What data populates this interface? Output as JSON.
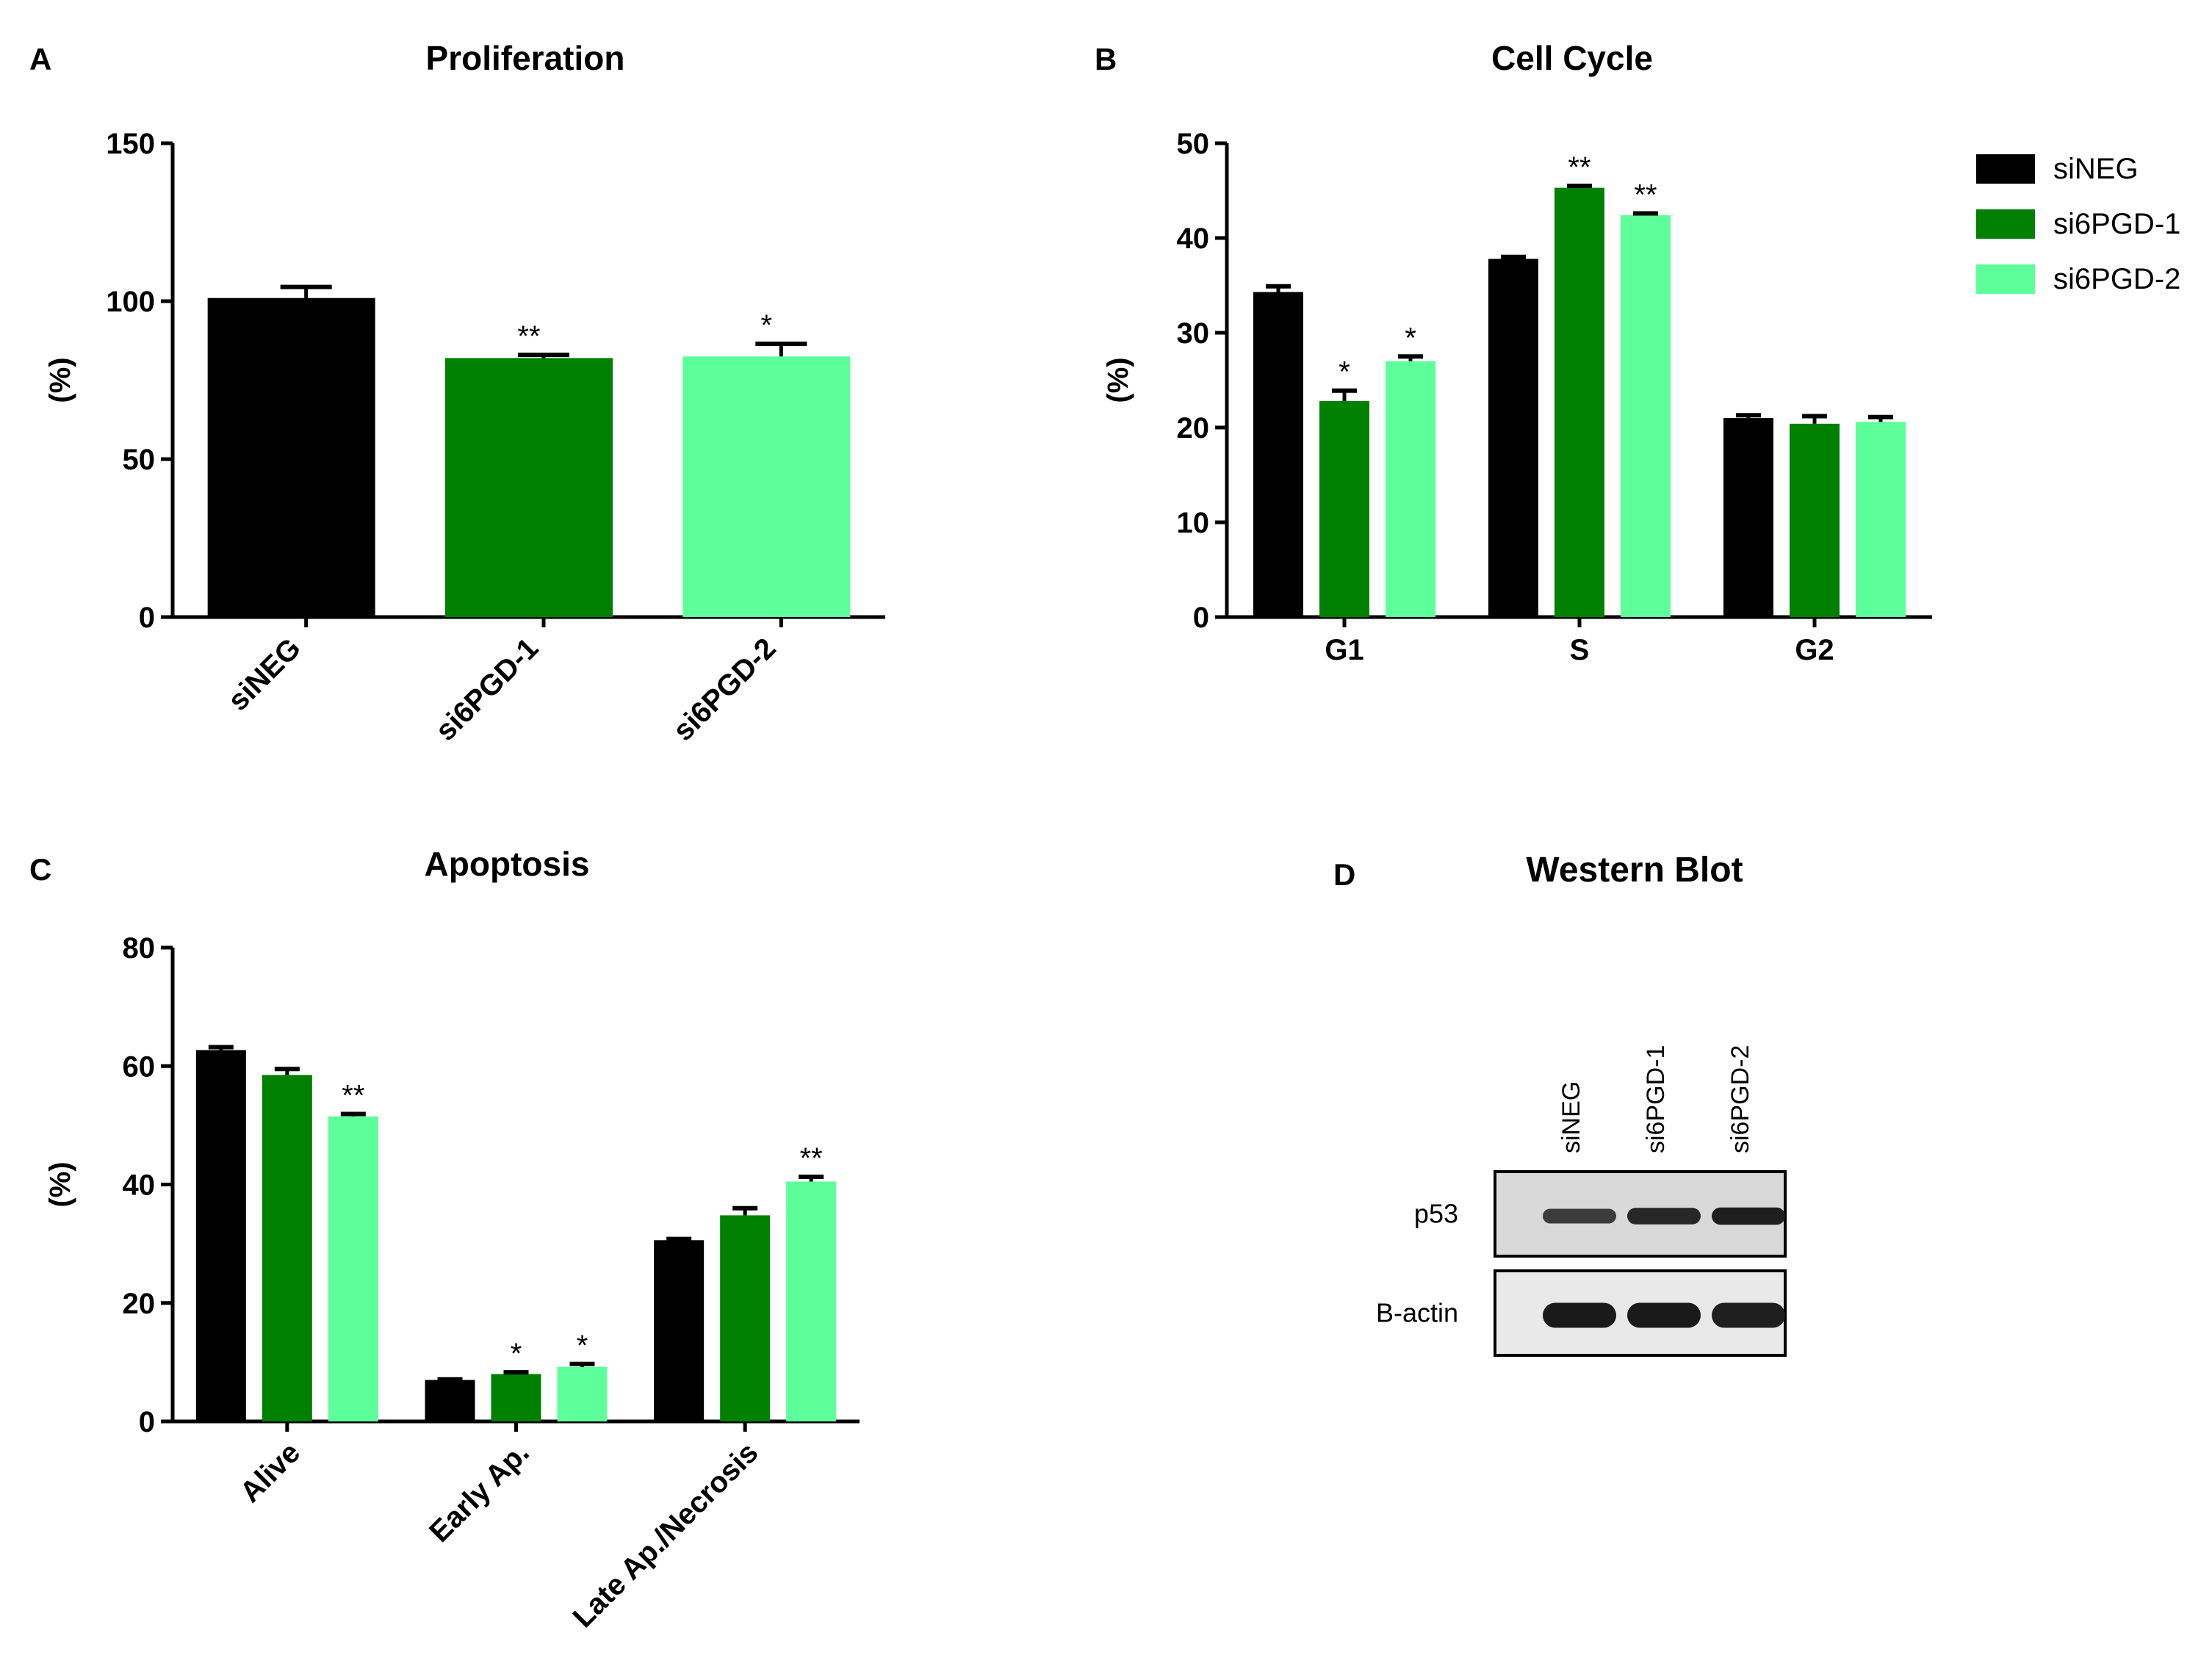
{
  "colors": {
    "siNEG": "#000000",
    "si6PGD-1": "#008000",
    "si6PGD-2": "#5cff9a",
    "axis": "#000000",
    "text": "#000000",
    "blot_bg": "#d9d9d9",
    "blot_bg2": "#e9e9e9",
    "band": "#1a1a1a"
  },
  "legend": {
    "entries": [
      "siNEG",
      "si6PGD-1",
      "si6PGD-2"
    ]
  },
  "chart_data": [
    {
      "panel": "A",
      "type": "bar",
      "title": "Proliferation",
      "ylabel": "(%)",
      "xlabel": "",
      "ylim": [
        0,
        150
      ],
      "yticks": [
        0,
        50,
        100,
        150
      ],
      "categories": [
        "siNEG",
        "si6PGD-1",
        "si6PGD-2"
      ],
      "values": [
        101,
        82,
        82.5
      ],
      "errors": [
        3.5,
        1,
        4
      ],
      "significance": [
        "",
        "**",
        "*"
      ]
    },
    {
      "panel": "B",
      "type": "bar",
      "title": "Cell Cycle",
      "ylabel": "(%)",
      "xlabel": "",
      "ylim": [
        0,
        50
      ],
      "yticks": [
        0,
        10,
        20,
        30,
        40,
        50
      ],
      "categories": [
        "G1",
        "S",
        "G2"
      ],
      "series": [
        {
          "name": "siNEG",
          "values": [
            34.3,
            37.8,
            21
          ],
          "errors": [
            0.6,
            0.2,
            0.3
          ],
          "significance": [
            "",
            "",
            ""
          ]
        },
        {
          "name": "si6PGD-1",
          "values": [
            22.8,
            45.3,
            20.4
          ],
          "errors": [
            1.1,
            0.2,
            0.8
          ],
          "significance": [
            "*",
            "**",
            ""
          ]
        },
        {
          "name": "si6PGD-2",
          "values": [
            27,
            42.4,
            20.6
          ],
          "errors": [
            0.5,
            0.2,
            0.5
          ],
          "significance": [
            "*",
            "**",
            ""
          ]
        }
      ]
    },
    {
      "panel": "C",
      "type": "bar",
      "title": "Apoptosis",
      "ylabel": "(%)",
      "xlabel": "",
      "ylim": [
        0,
        80
      ],
      "yticks": [
        0,
        20,
        40,
        60,
        80
      ],
      "categories": [
        "Alive",
        "Early Ap.",
        "Late Ap./Necrosis"
      ],
      "series": [
        {
          "name": "siNEG",
          "values": [
            62.7,
            7,
            30.6
          ],
          "errors": [
            0.5,
            0.1,
            0.2
          ],
          "significance": [
            "",
            "",
            ""
          ]
        },
        {
          "name": "si6PGD-1",
          "values": [
            58.5,
            8,
            34.8
          ],
          "errors": [
            1,
            0.3,
            1.2
          ],
          "significance": [
            "",
            "*",
            ""
          ]
        },
        {
          "name": "si6PGD-2",
          "values": [
            51.5,
            9.2,
            40.5
          ],
          "errors": [
            0.4,
            0.5,
            0.8
          ],
          "significance": [
            "**",
            "*",
            "**"
          ]
        }
      ]
    }
  ],
  "western_blot": {
    "panel": "D",
    "title": "Western Blot",
    "lanes": [
      "siNEG",
      "si6PGD-1",
      "si6PGD-2"
    ],
    "rows": [
      {
        "label": "p53",
        "intensities": [
          0.6,
          0.85,
          0.95
        ]
      },
      {
        "label": "B-actin",
        "intensities": [
          1,
          1,
          0.95
        ]
      }
    ]
  }
}
